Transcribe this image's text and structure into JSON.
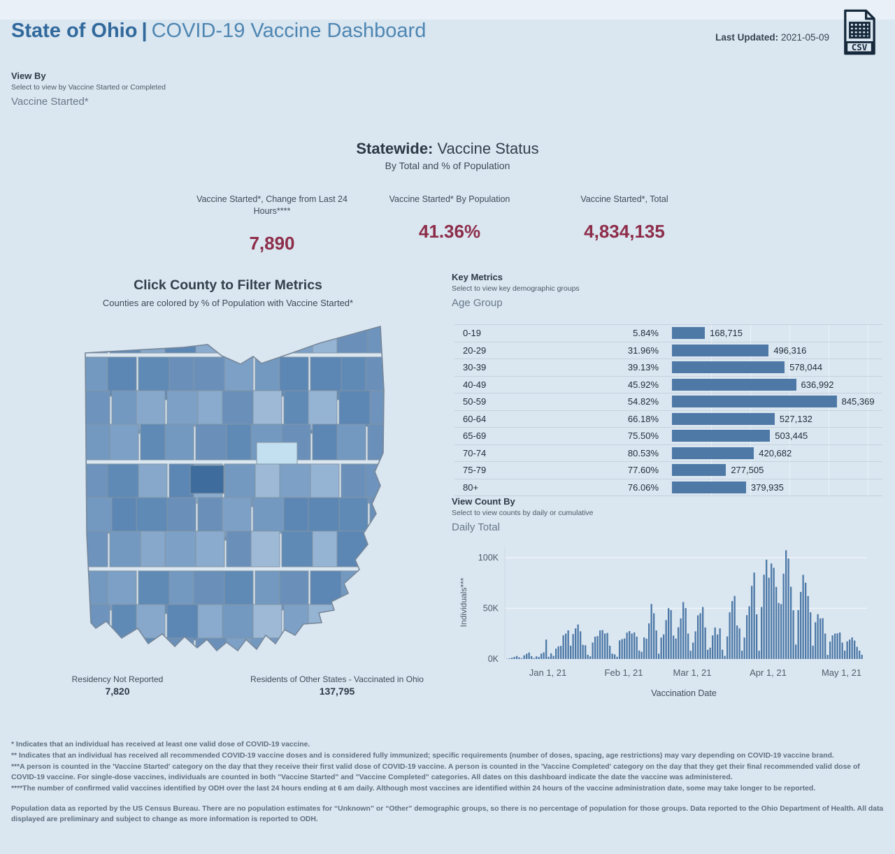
{
  "header": {
    "title_primary": "State of Ohio",
    "title_separator": "|",
    "title_secondary": "COVID-19 Vaccine Dashboard",
    "last_updated_label": "Last Updated:",
    "last_updated_value": "2021-05-09",
    "csv_icon_text": "CSV"
  },
  "view_by": {
    "label": "View By",
    "hint": "Select to view by Vaccine Started or Completed",
    "selected": "Vaccine Started*"
  },
  "statewide": {
    "title_bold": "Statewide:",
    "title_rest": " Vaccine Status",
    "subtitle": "By Total and % of Population",
    "metrics": [
      {
        "label": "Vaccine Started*, Change from Last 24 Hours****",
        "value": "7,890"
      },
      {
        "label": "Vaccine Started* By Population",
        "value": "41.36%"
      },
      {
        "label": "Vaccine Started*, Total",
        "value": "4,834,135"
      }
    ]
  },
  "map_section": {
    "title": "Click County to Filter Metrics",
    "subtitle": "Counties are colored by % of Population with Vaccine Started*",
    "palette": [
      "#6e93bc",
      "#7da0c6",
      "#8aabcd",
      "#5f8ab6",
      "#95b3d3",
      "#7399c1",
      "#87a8ca",
      "#6a90ba",
      "#9db9d6",
      "#5c86b3"
    ],
    "highlight_light": "#c3e0f0",
    "highlight_dark": "#3e6d9d",
    "border": "#8294a4",
    "outline": "#76879a",
    "footer": [
      {
        "label": "Residency Not Reported",
        "value": "7,820"
      },
      {
        "label": "Residents of Other States - Vaccinated in Ohio",
        "value": "137,795"
      }
    ]
  },
  "key_metrics": {
    "label": "Key Metrics",
    "hint": "Select to view key demographic groups",
    "selected": "Age Group"
  },
  "view_count": {
    "label": "View Count By",
    "hint": "Select to view counts by daily or cumulative",
    "selected": "Daily Total"
  },
  "chart_data": [
    {
      "type": "table",
      "title": "Vaccine Started by Age Group",
      "categories": [
        "0-19",
        "20-29",
        "30-39",
        "40-49",
        "50-59",
        "60-64",
        "65-69",
        "70-74",
        "75-79",
        "80+"
      ],
      "pct_labels": [
        "5.84%",
        "31.96%",
        "39.13%",
        "45.92%",
        "54.82%",
        "66.18%",
        "75.50%",
        "80.53%",
        "77.60%",
        "76.06%"
      ],
      "values": [
        168715,
        496316,
        578044,
        636992,
        845369,
        527132,
        503445,
        420682,
        277505,
        379935
      ],
      "value_labels": [
        "168,715",
        "496,316",
        "578,044",
        "636,992",
        "845,369",
        "527,132",
        "503,445",
        "420,682",
        "277,505",
        "379,935"
      ],
      "xlim": [
        0,
        1080000
      ],
      "bar_color": "#4e79a7",
      "grid": true
    },
    {
      "type": "bar",
      "title": "Daily Vaccine Started Counts",
      "ylabel": "Individuals***",
      "xlabel": "Vaccination Date",
      "bar_color": "#4e79a7",
      "start_date": "2020-12-15",
      "unit": "thousands of individuals per day",
      "ylim_k": [
        0,
        115
      ],
      "grid": true,
      "yticks": [
        {
          "label": "0K",
          "k": 0
        },
        {
          "label": "50K",
          "k": 50
        },
        {
          "label": "100K",
          "k": 100
        }
      ],
      "xticks": [
        {
          "label": "Jan 1, 21",
          "index": 17
        },
        {
          "label": "Feb 1, 21",
          "index": 48
        },
        {
          "label": "Mar 1, 21",
          "index": 76
        },
        {
          "label": "Apr 1, 21",
          "index": 107
        },
        {
          "label": "May 1, 21",
          "index": 137
        }
      ],
      "values_k": [
        0.3,
        0.7,
        1.3,
        2.1,
        3.0,
        1.6,
        0.7,
        3.6,
        5.2,
        6.4,
        2.8,
        0.9,
        2.6,
        2.1,
        5.3,
        6.6,
        19.2,
        2.2,
        5.6,
        3.1,
        10.2,
        12.5,
        13.0,
        23.4,
        25.1,
        28.3,
        13.2,
        24.6,
        30.2,
        34.1,
        27.3,
        14.0,
        13.6,
        4.2,
        2.6,
        16.3,
        22.1,
        22.6,
        28.2,
        28.6,
        25.2,
        25.7,
        13.1,
        5.3,
        4.6,
        2.2,
        18.4,
        19.6,
        20.3,
        26.1,
        27.6,
        25.2,
        26.3,
        22.1,
        8.4,
        7.2,
        21.3,
        20.1,
        35.2,
        54.3,
        45.1,
        28.2,
        5.3,
        21.2,
        24.3,
        38.4,
        50.2,
        48.3,
        23.1,
        20.2,
        31.3,
        40.1,
        56.2,
        50.3,
        25.1,
        8.2,
        16.2,
        27.3,
        43.1,
        45.2,
        51.3,
        31.2,
        9.1,
        11.2,
        23.3,
        31.1,
        24.2,
        30.3,
        9.2,
        3.1,
        22.3,
        46.1,
        57.2,
        62.3,
        33.1,
        30.2,
        8.3,
        21.2,
        43.3,
        52.1,
        72.2,
        85.3,
        44.1,
        8.2,
        51.3,
        83.2,
        98.1,
        80.2,
        94.3,
        90.1,
        71.2,
        55.3,
        54.2,
        84.3,
        107.4,
        99.2,
        71.3,
        48.1,
        14.2,
        48.3,
        66.2,
        83.1,
        75.3,
        62.2,
        46.1,
        13.2,
        36.3,
        44.2,
        40.1,
        40.3,
        25.2,
        4.1,
        17.2,
        23.3,
        25.1,
        25.3,
        26.2,
        16.2,
        8.3,
        17.4,
        19.2,
        21.3,
        18.2,
        12.1,
        8.3,
        4.2
      ]
    }
  ],
  "footnotes": [
    "* Indicates that an individual has received at least one valid dose of COVID-19 vaccine.",
    "** Indicates that an individual has received all recommended COVID-19 vaccine doses and is considered fully immunized; specific requirements (number of doses, spacing, age restrictions) may vary depending on COVID-19 vaccine brand.",
    "***A person is counted in the 'Vaccine Started' category on the day that they receive their first valid dose of COVID-19 vaccine.  A person is counted in the 'Vaccine Completed' category on the day that they get their final recommended valid dose of COVID-19 vaccine. For single-dose vaccines, individuals are counted in both \"Vaccine Started\" and \"Vaccine Completed\" categories. All dates on this dashboard indicate the date the vaccine was administered.",
    "****The number of confirmed valid vaccines identified by ODH over the last 24 hours ending at 6 am daily. Although most vaccines are identified within 24 hours of the vaccine administration date, some may take longer to be reported."
  ],
  "disclaimer": "Population data as reported by the US Census Bureau. There are no population estimates for “Unknown” or “Other” demographic groups, so there is no percentage of population for those groups.  Data reported to the Ohio Department of Health.  All data displayed are preliminary and subject to change as more information is reported to ODH."
}
